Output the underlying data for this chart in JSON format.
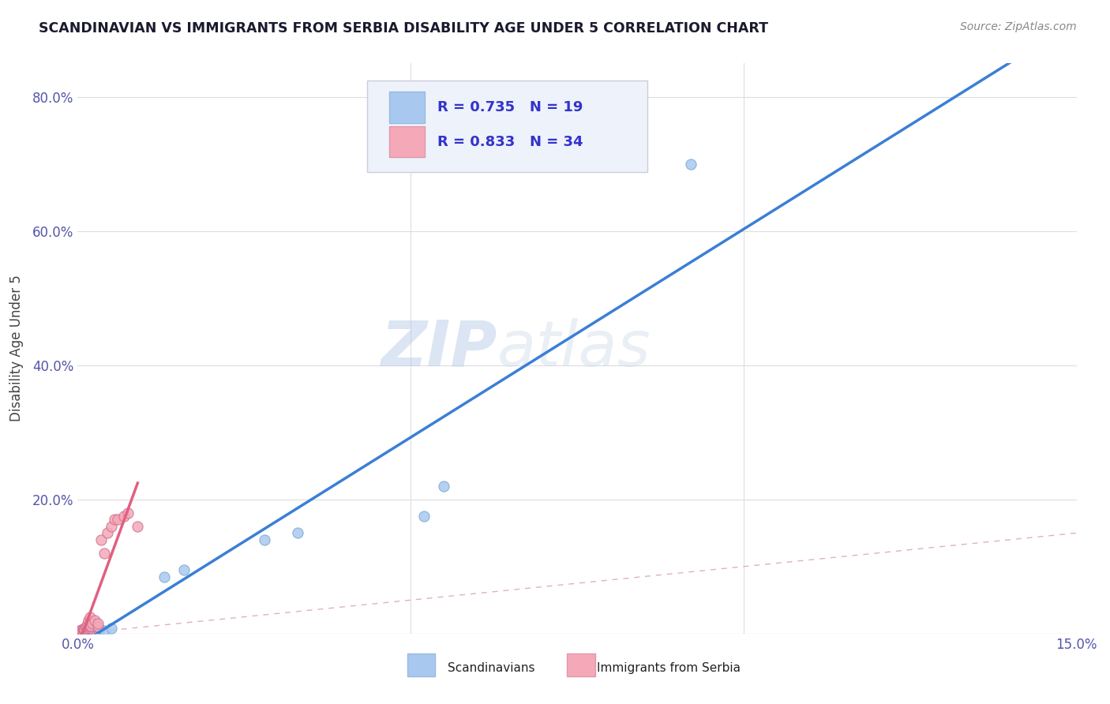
{
  "title": "SCANDINAVIAN VS IMMIGRANTS FROM SERBIA DISABILITY AGE UNDER 5 CORRELATION CHART",
  "source": "Source: ZipAtlas.com",
  "ylabel": "Disability Age Under 5",
  "xlim": [
    0.0,
    0.15
  ],
  "ylim": [
    0.0,
    0.85
  ],
  "xtick_vals": [
    0.0,
    0.05,
    0.1,
    0.15
  ],
  "xtick_labels": [
    "0.0%",
    "",
    "",
    "15.0%"
  ],
  "ytick_vals": [
    0.2,
    0.4,
    0.6,
    0.8
  ],
  "ytick_labels": [
    "20.0%",
    "40.0%",
    "60.0%",
    "80.0%"
  ],
  "scandinavian_color": "#a8c8f0",
  "scandinavian_edge": "#7aaad0",
  "serbia_color": "#f4a8b8",
  "serbia_edge": "#d07090",
  "trendline_scan_color": "#3a7fd5",
  "trendline_serb_color": "#e06080",
  "diagonal_color": "#cccccc",
  "legend_box_color": "#eef2fa",
  "R_scan": 0.735,
  "N_scan": 19,
  "R_serb": 0.833,
  "N_serb": 34,
  "scandinavian_x": [
    0.0005,
    0.0008,
    0.001,
    0.0012,
    0.0015,
    0.0018,
    0.002,
    0.0022,
    0.003,
    0.0032,
    0.004,
    0.005,
    0.013,
    0.016,
    0.028,
    0.033,
    0.052,
    0.055,
    0.092
  ],
  "scandinavian_y": [
    0.003,
    0.004,
    0.002,
    0.003,
    0.005,
    0.003,
    0.004,
    0.004,
    0.006,
    0.005,
    0.005,
    0.008,
    0.085,
    0.095,
    0.14,
    0.15,
    0.175,
    0.22,
    0.7
  ],
  "serbia_x": [
    0.0002,
    0.0003,
    0.0004,
    0.0005,
    0.0006,
    0.0007,
    0.0008,
    0.0009,
    0.001,
    0.001,
    0.001,
    0.001,
    0.0012,
    0.0013,
    0.0014,
    0.0015,
    0.0016,
    0.0018,
    0.002,
    0.002,
    0.002,
    0.0022,
    0.0025,
    0.003,
    0.003,
    0.0035,
    0.004,
    0.0045,
    0.005,
    0.0055,
    0.006,
    0.007,
    0.0075,
    0.009
  ],
  "serbia_y": [
    0.003,
    0.004,
    0.003,
    0.005,
    0.006,
    0.005,
    0.007,
    0.006,
    0.004,
    0.005,
    0.006,
    0.007,
    0.008,
    0.01,
    0.012,
    0.015,
    0.02,
    0.025,
    0.008,
    0.01,
    0.012,
    0.015,
    0.02,
    0.01,
    0.015,
    0.14,
    0.12,
    0.15,
    0.16,
    0.17,
    0.17,
    0.175,
    0.18,
    0.16
  ],
  "watermark_zip": "ZIP",
  "watermark_atlas": "atlas",
  "background_color": "#ffffff",
  "grid_color": "#dddddd",
  "title_color": "#1a1a2e",
  "source_color": "#888888",
  "tick_color": "#5555aa",
  "label_color": "#444444",
  "legend_text_color": "#3333cc"
}
